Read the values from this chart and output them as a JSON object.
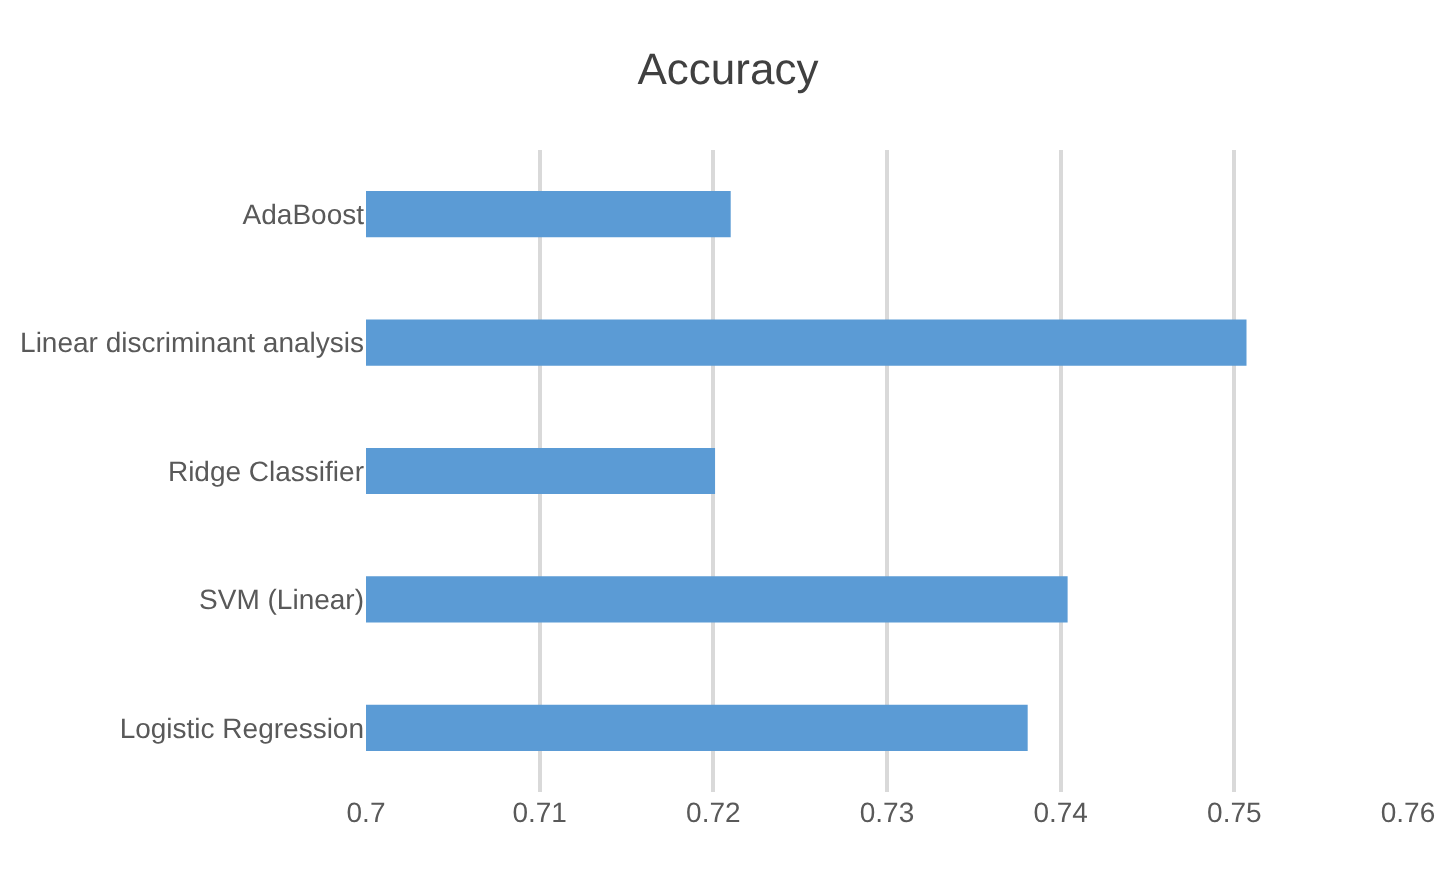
{
  "chart_data": {
    "type": "bar",
    "orientation": "horizontal",
    "title": "Accuracy",
    "categories": [
      "AdaBoost",
      "Linear discriminant analysis",
      "Ridge Classifier",
      "SVM (Linear)",
      "Logistic Regression"
    ],
    "values": [
      0.721,
      0.7507,
      0.7201,
      0.7404,
      0.7381
    ],
    "color": "#5b9bd5",
    "xlim": [
      0.7,
      0.76
    ],
    "xticks": [
      0.7,
      0.71,
      0.72,
      0.73,
      0.74,
      0.75,
      0.76
    ],
    "grid": "x",
    "legend": false
  }
}
